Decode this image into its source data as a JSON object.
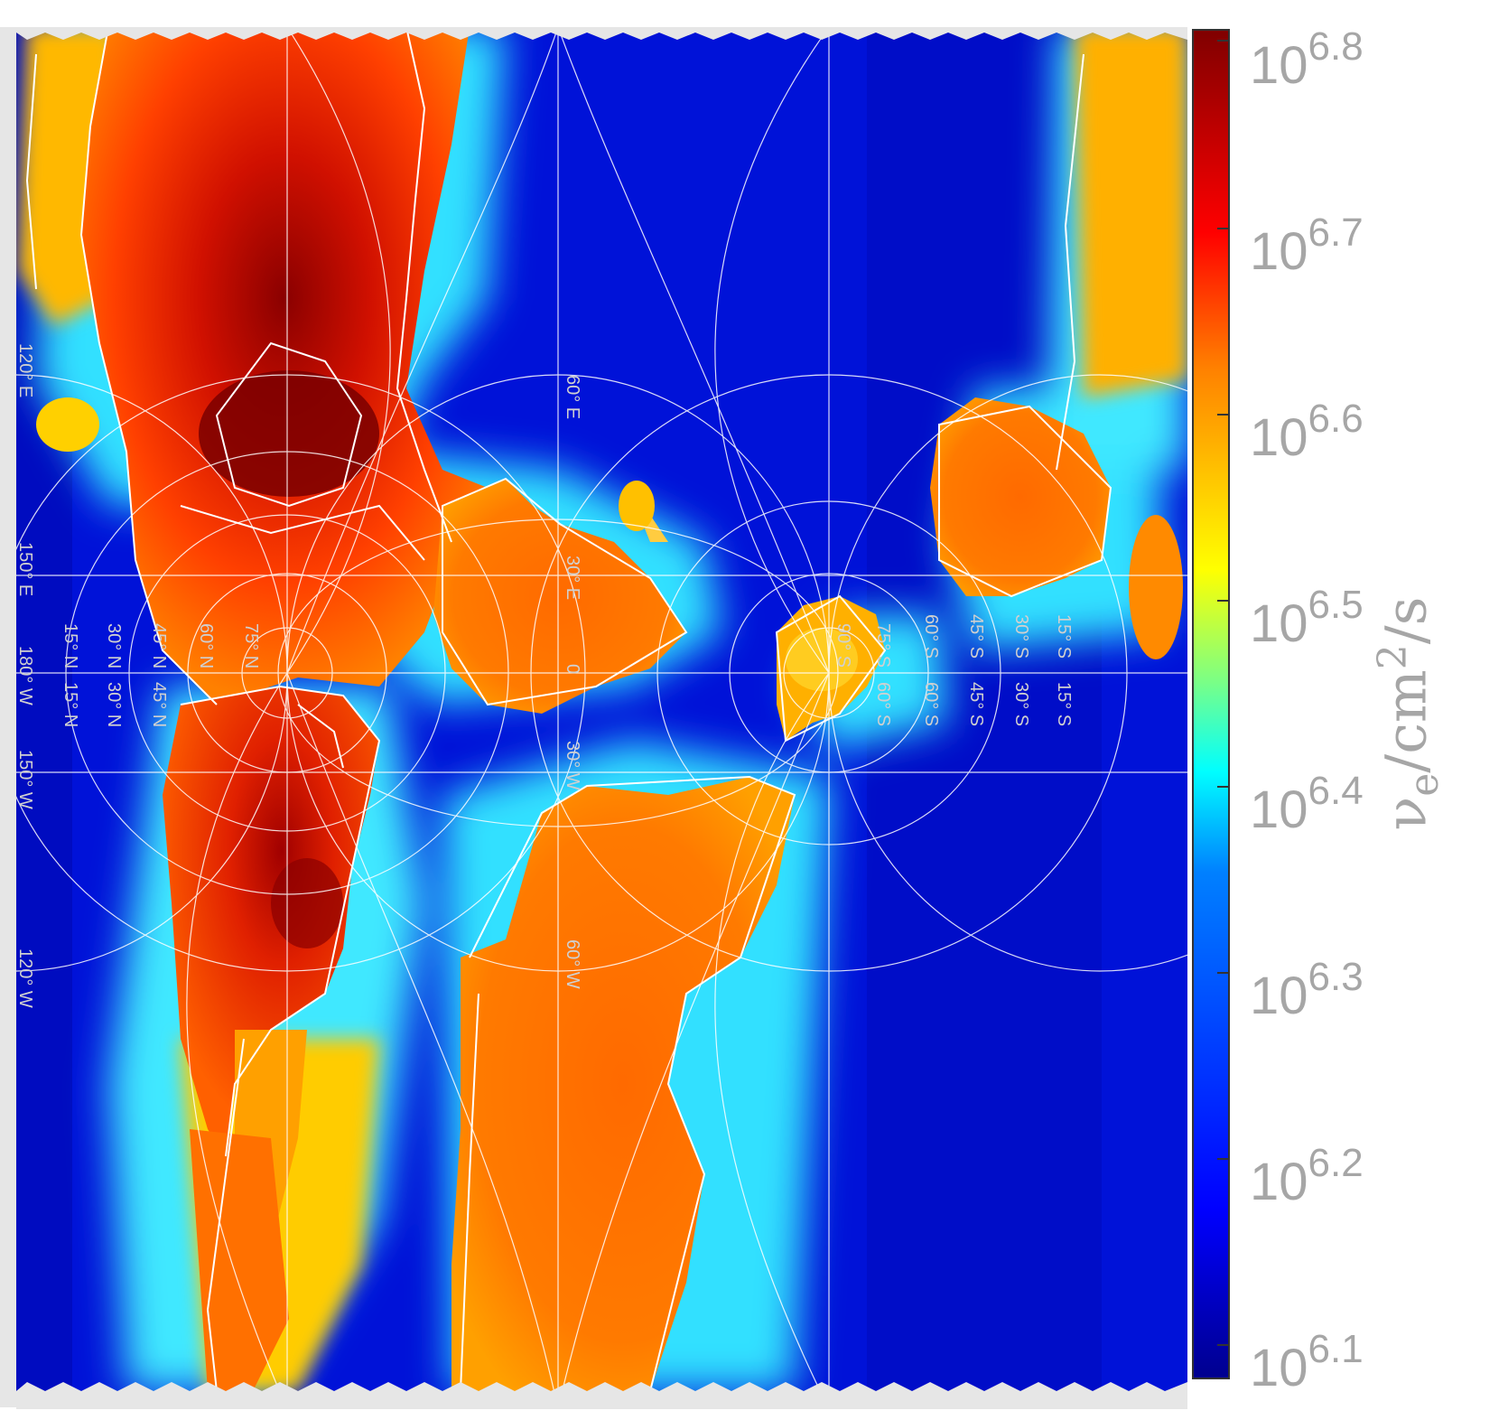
{
  "colorbar": {
    "label_symbol": "ν",
    "label_sub": "e",
    "label_unit_pre": "/cm",
    "label_unit_sup": "2",
    "label_unit_post": "/s",
    "ticks": [
      {
        "base": "10",
        "exp": "6.8"
      },
      {
        "base": "10",
        "exp": "6.7"
      },
      {
        "base": "10",
        "exp": "6.6"
      },
      {
        "base": "10",
        "exp": "6.5"
      },
      {
        "base": "10",
        "exp": "6.4"
      },
      {
        "base": "10",
        "exp": "6.3"
      },
      {
        "base": "10",
        "exp": "6.2"
      },
      {
        "base": "10",
        "exp": "6.1"
      }
    ],
    "scale": "log",
    "colormap": "jet",
    "colors": [
      "#00008f",
      "#0000ff",
      "#0080ff",
      "#00ffff",
      "#ffff00",
      "#ff8000",
      "#ff0000",
      "#800000"
    ]
  },
  "graticule_labels": [
    "15° N",
    "30° N",
    "45° N",
    "60° N",
    "75° N",
    "15° N",
    "30° N",
    "45° N",
    "150° E",
    "120° E",
    "180° W",
    "150° W",
    "120° W",
    "60° E",
    "30° E",
    "0",
    "30° W",
    "60° W",
    "60° S",
    "75° S",
    "90° S",
    "60° S",
    "45° S",
    "30° S",
    "15° S",
    "60° S",
    "45° S",
    "30° S",
    "15° S"
  ],
  "map_style": {
    "ocean_color": "#0010d0",
    "coastline_color": "#ffffff",
    "graticule_color": "#ffffff",
    "frame_color": "#e6e6e6"
  }
}
